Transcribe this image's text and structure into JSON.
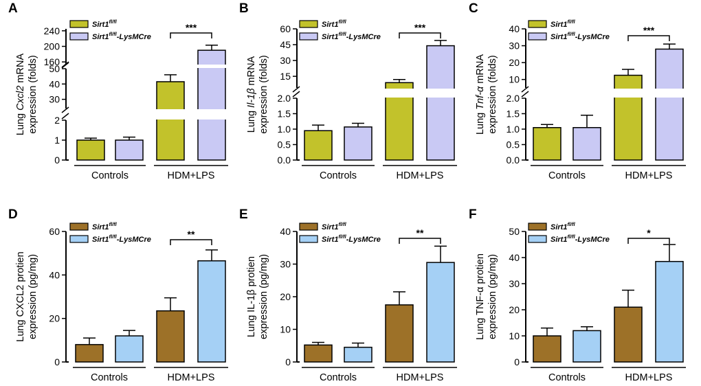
{
  "figure": {
    "description_free": true
  },
  "chart_data": [
    {
      "panel": "A",
      "type": "bar",
      "broken_axis": true,
      "ylabel_parts": [
        "Lung ",
        "Cxcl2",
        " mRNA"
      ],
      "ylabel_line2": "expression (folds)",
      "groups": [
        "Controls",
        "HDM+LPS"
      ],
      "series": [
        {
          "name": "Sirt1",
          "sup": "fl/fl",
          "suffix": "",
          "color": "#c2c22b",
          "values": [
            1.0,
            41.5
          ],
          "errors": [
            0.1,
            4.5
          ]
        },
        {
          "name": "Sirt1",
          "sup": "fl/fl",
          "suffix": "-LysMCre",
          "color": "#c9c9f4",
          "values": [
            1.0,
            190
          ],
          "errors": [
            0.15,
            13
          ]
        }
      ],
      "segments": [
        {
          "range": [
            0,
            2
          ],
          "ticks": [
            0,
            1,
            2
          ]
        },
        {
          "range": [
            24,
            50
          ],
          "ticks": [
            30,
            40,
            50
          ]
        },
        {
          "range": [
            155,
            245
          ],
          "ticks": [
            160,
            200,
            240
          ]
        }
      ],
      "significance": {
        "label": "***"
      }
    },
    {
      "panel": "B",
      "type": "bar",
      "broken_axis": true,
      "ylabel_parts": [
        "Lung ",
        "Il-1β",
        " mRNA"
      ],
      "ylabel_line2": "expression (folds)",
      "groups": [
        "Controls",
        "HDM+LPS"
      ],
      "series": [
        {
          "name": "Sirt1",
          "sup": "fl/fl",
          "suffix": "",
          "color": "#c2c22b",
          "values": [
            0.95,
            9
          ],
          "errors": [
            0.18,
            3
          ]
        },
        {
          "name": "Sirt1",
          "sup": "fl/fl",
          "suffix": "-LysMCre",
          "color": "#c9c9f4",
          "values": [
            1.07,
            44
          ],
          "errors": [
            0.12,
            5
          ]
        }
      ],
      "segments": [
        {
          "range": [
            0,
            2.0
          ],
          "ticks": [
            0.0,
            0.5,
            1.0,
            1.5,
            2.0
          ]
        },
        {
          "range": [
            4,
            60
          ],
          "ticks": [
            15,
            30,
            45,
            60
          ]
        }
      ],
      "significance": {
        "label": "***"
      }
    },
    {
      "panel": "C",
      "type": "bar",
      "broken_axis": true,
      "ylabel_parts": [
        "Lung ",
        "Tnf-α",
        " mRNA"
      ],
      "ylabel_line2": "expression (folds)",
      "groups": [
        "Controls",
        "HDM+LPS"
      ],
      "series": [
        {
          "name": "Sirt1",
          "sup": "fl/fl",
          "suffix": "",
          "color": "#c2c22b",
          "values": [
            1.05,
            12.5
          ],
          "errors": [
            0.1,
            3.5
          ]
        },
        {
          "name": "Sirt1",
          "sup": "fl/fl",
          "suffix": "-LysMCre",
          "color": "#c9c9f4",
          "values": [
            1.05,
            28
          ],
          "errors": [
            0.4,
            3
          ]
        }
      ],
      "segments": [
        {
          "range": [
            0,
            2.0
          ],
          "ticks": [
            0.0,
            0.5,
            1.0,
            1.5,
            2.0
          ]
        },
        {
          "range": [
            5,
            40
          ],
          "ticks": [
            10,
            20,
            30,
            40
          ]
        }
      ],
      "significance": {
        "label": "***"
      }
    },
    {
      "panel": "D",
      "type": "bar",
      "broken_axis": false,
      "ylabel_parts": [
        "Lung CXCL2 protien"
      ],
      "ylabel_line2": "expression (pg/mg)",
      "groups": [
        "Controls",
        "HDM+LPS"
      ],
      "series": [
        {
          "name": "Sirt1",
          "sup": "fl/fl",
          "suffix": "",
          "color": "#9d7128",
          "values": [
            8,
            23.5
          ],
          "errors": [
            3,
            6
          ]
        },
        {
          "name": "Sirt1",
          "sup": "fl/fl",
          "suffix": "-LysMCre",
          "color": "#a5d0f5",
          "values": [
            12,
            46.5
          ],
          "errors": [
            2.5,
            5
          ]
        }
      ],
      "segments": [
        {
          "range": [
            0,
            60
          ],
          "ticks": [
            0,
            20,
            40,
            60
          ]
        }
      ],
      "significance": {
        "label": "**"
      }
    },
    {
      "panel": "E",
      "type": "bar",
      "broken_axis": false,
      "ylabel_parts": [
        "Lung IL-1β protien"
      ],
      "ylabel_line2": "expression (pg/mg)",
      "groups": [
        "Controls",
        "HDM+LPS"
      ],
      "series": [
        {
          "name": "Sirt1",
          "sup": "fl/fl",
          "suffix": "",
          "color": "#9d7128",
          "values": [
            5.2,
            17.5
          ],
          "errors": [
            0.8,
            4
          ]
        },
        {
          "name": "Sirt1",
          "sup": "fl/fl",
          "suffix": "-LysMCre",
          "color": "#a5d0f5",
          "values": [
            4.5,
            30.5
          ],
          "errors": [
            1.3,
            5
          ]
        }
      ],
      "segments": [
        {
          "range": [
            0,
            40
          ],
          "ticks": [
            0,
            10,
            20,
            30,
            40
          ]
        }
      ],
      "significance": {
        "label": "**"
      }
    },
    {
      "panel": "F",
      "type": "bar",
      "broken_axis": false,
      "ylabel_parts": [
        "Lung TNF-α protien"
      ],
      "ylabel_line2": "expression (pg/mg)",
      "groups": [
        "Controls",
        "HDM+LPS"
      ],
      "series": [
        {
          "name": "Sirt1",
          "sup": "fl/fl",
          "suffix": "",
          "color": "#9d7128",
          "values": [
            10,
            21
          ],
          "errors": [
            3,
            6.5
          ]
        },
        {
          "name": "Sirt1",
          "sup": "fl/fl",
          "suffix": "-LysMCre",
          "color": "#a5d0f5",
          "values": [
            12,
            38.5
          ],
          "errors": [
            1.5,
            6.5
          ]
        }
      ],
      "segments": [
        {
          "range": [
            0,
            50
          ],
          "ticks": [
            0,
            10,
            20,
            30,
            40,
            50
          ]
        }
      ],
      "significance": {
        "label": "*"
      }
    }
  ]
}
